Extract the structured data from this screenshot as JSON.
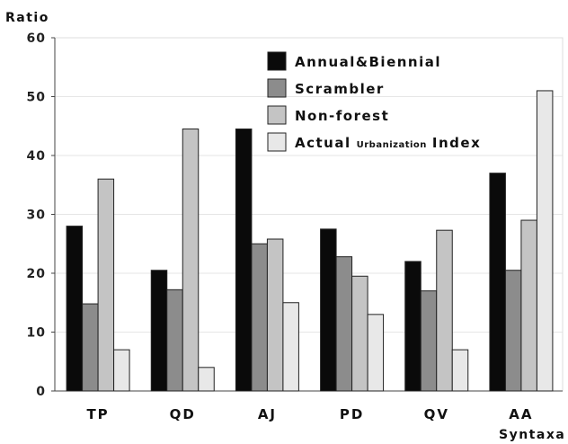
{
  "chart_data": {
    "type": "bar",
    "ylabel": "Ratio",
    "xlabel": "Syntaxa",
    "ylim": [
      0,
      60
    ],
    "yticks": [
      0,
      10,
      20,
      30,
      40,
      50,
      60
    ],
    "categories": [
      "TP",
      "QD",
      "AJ",
      "PD",
      "QV",
      "AA"
    ],
    "series": [
      {
        "name": "Annual&Biennial",
        "color": "#0a0a0a",
        "values": [
          28,
          20.5,
          44.5,
          27.5,
          22,
          37
        ]
      },
      {
        "name": "Scrambler",
        "color": "#8c8c8c",
        "values": [
          14.8,
          17.2,
          25,
          22.8,
          17,
          20.5
        ]
      },
      {
        "name": "Non-forest",
        "color": "#c4c4c4",
        "values": [
          36,
          44.5,
          25.8,
          19.5,
          27.3,
          29
        ]
      },
      {
        "name": "Actual Urbanization Index",
        "color": "#e8e8e8",
        "values": [
          7,
          4,
          15,
          13,
          7,
          51
        ]
      }
    ],
    "legend": {
      "position": "top-right",
      "actual_prefix": "Actual",
      "actual_middle": "Urbanization",
      "actual_suffix": "Index"
    },
    "grid": true
  }
}
